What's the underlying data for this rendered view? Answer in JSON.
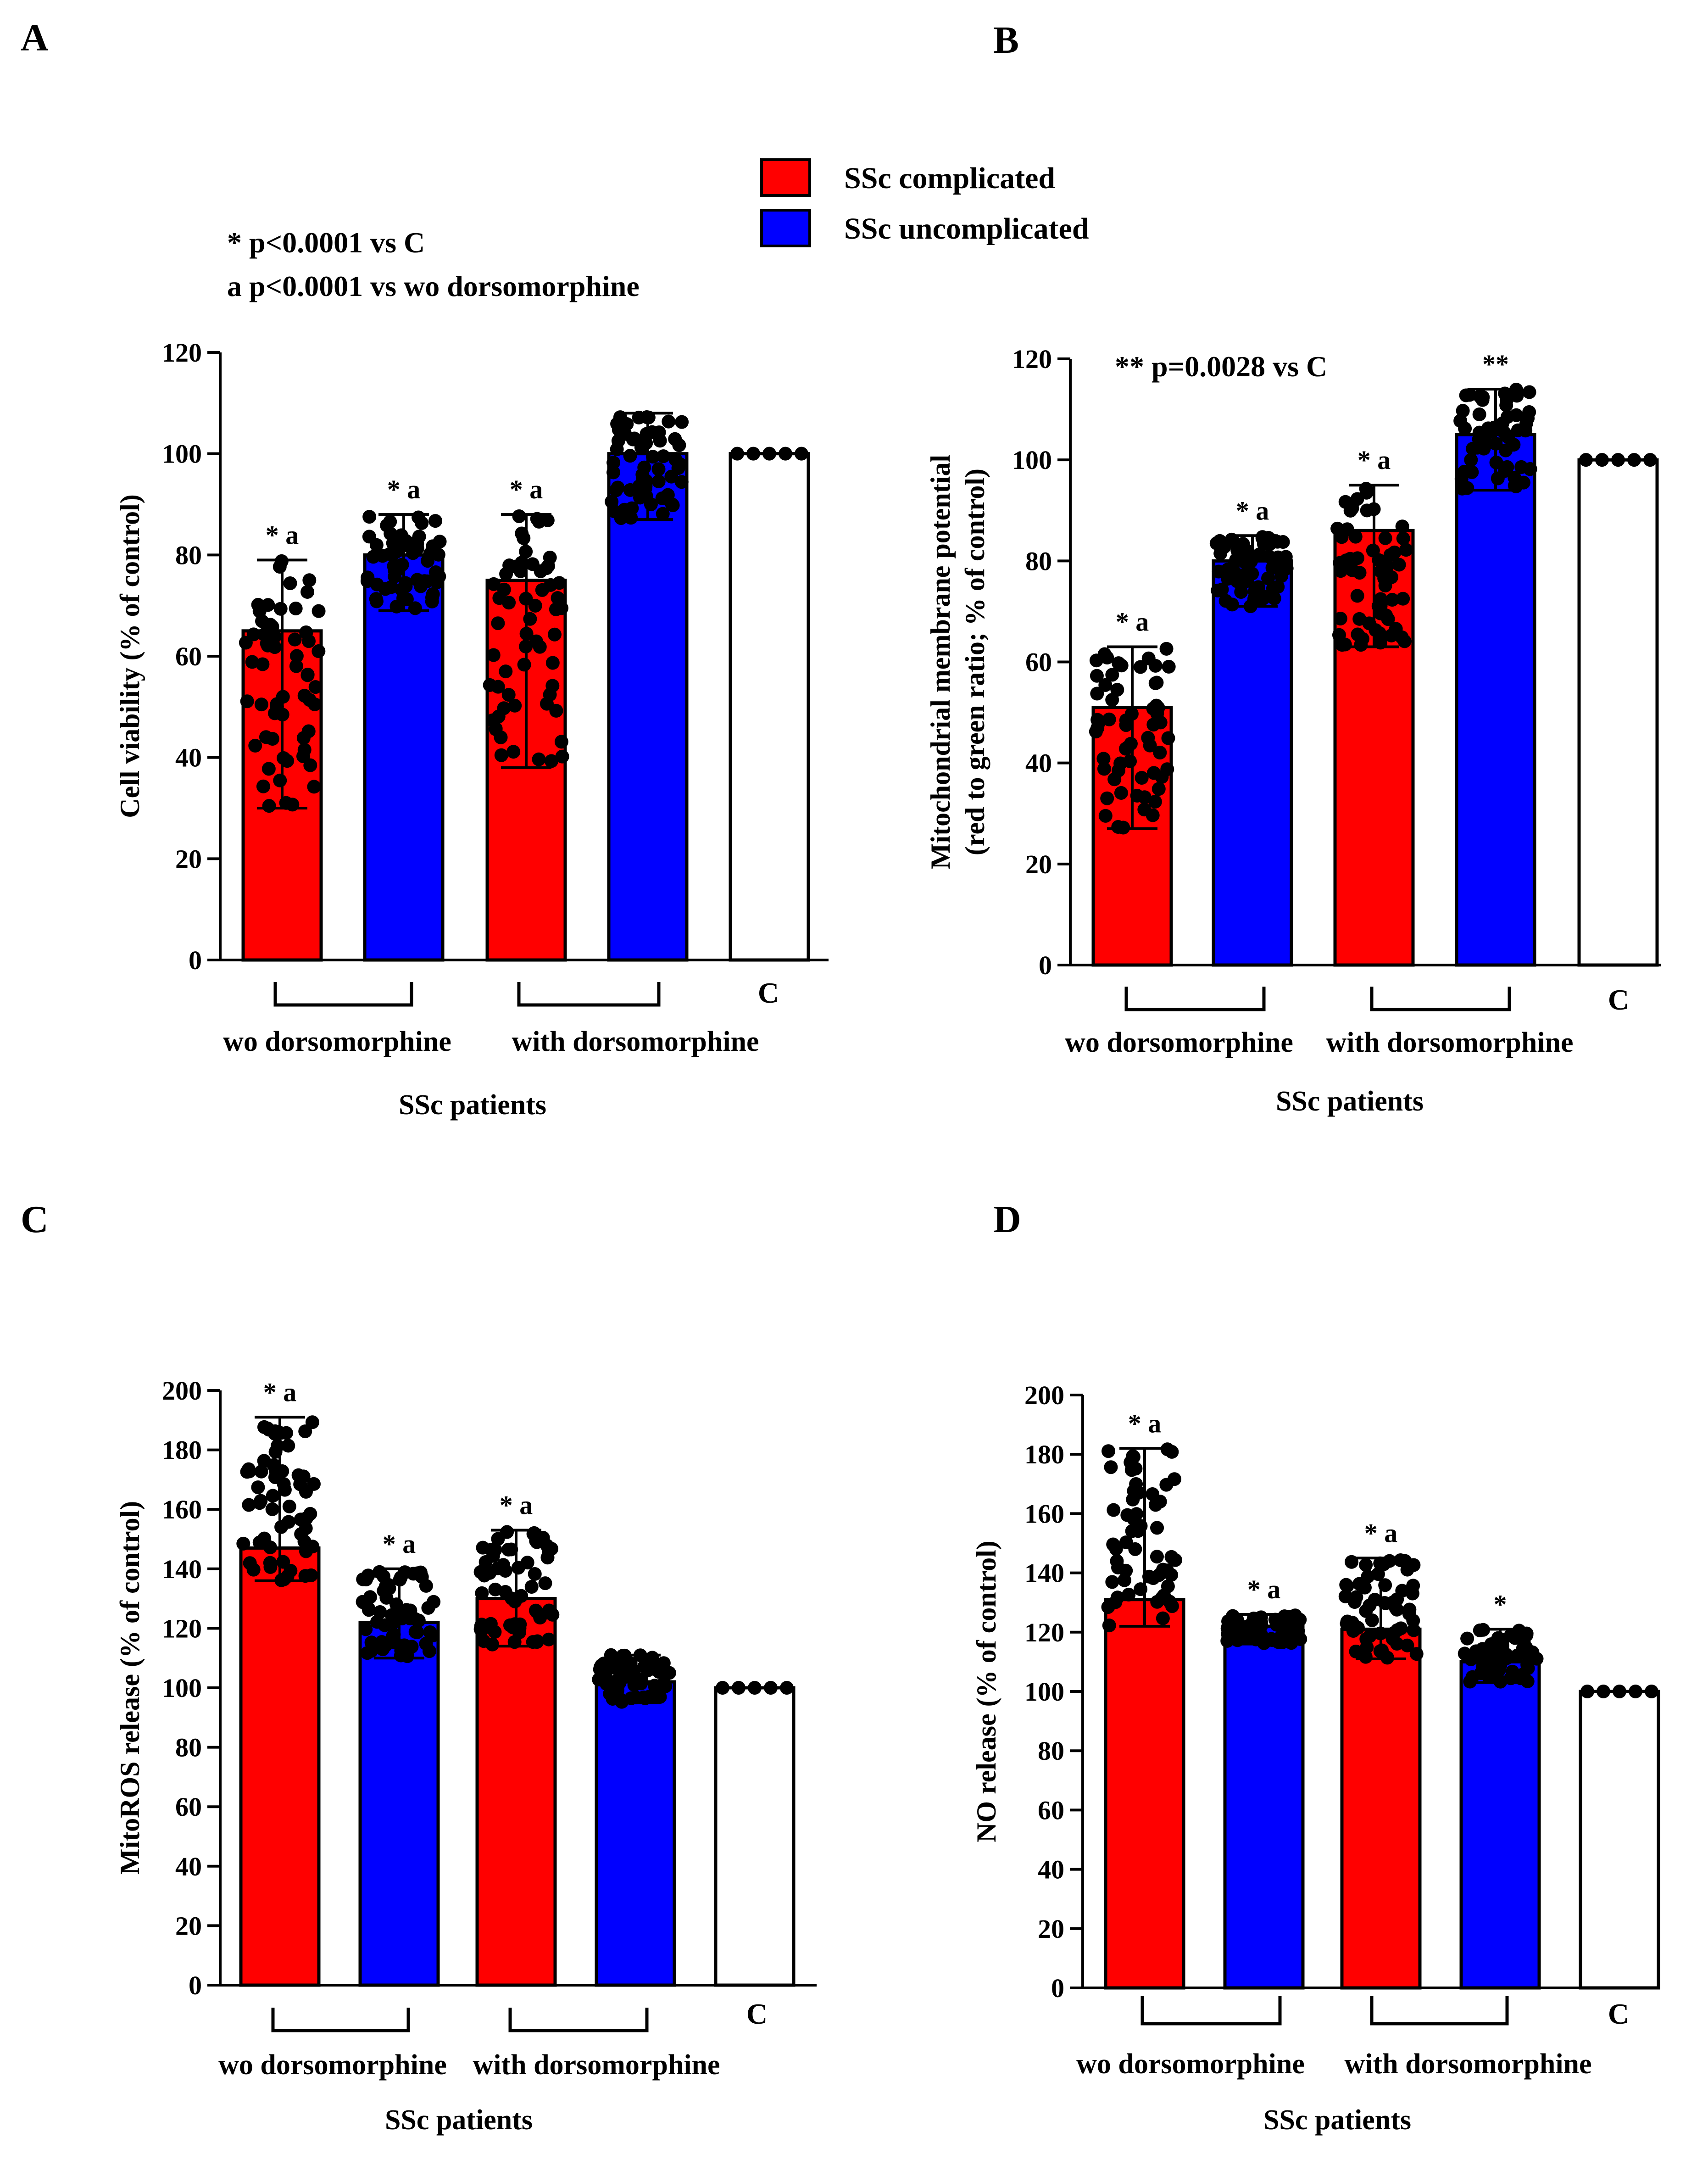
{
  "legend": {
    "items": [
      {
        "label": "SSc complicated",
        "color": "#ff0000"
      },
      {
        "label": "SSc uncomplicated",
        "color": "#0000ff"
      }
    ]
  },
  "colors": {
    "red": "#ff0000",
    "blue": "#0000ff",
    "white": "#ffffff",
    "black": "#000000"
  },
  "chart_data": [
    {
      "type": "bar",
      "panel_label": "A",
      "ylabel": "Cell viability (% of control)",
      "ylim": [
        0,
        120
      ],
      "yticks": [
        0,
        20,
        40,
        60,
        80,
        100,
        120
      ],
      "notes": [
        "* p<0.0001 vs C",
        "a  p<0.0001 vs wo dorsomorphine"
      ],
      "group_labels": [
        "wo dorsomorphine",
        "with dorsomorphine"
      ],
      "control_label": "C",
      "xlabel": "SSc patients",
      "bars": [
        {
          "value": 65,
          "err_low": 30,
          "err_high": 79,
          "color": "red",
          "annotation": "* a"
        },
        {
          "value": 80,
          "err_low": 69,
          "err_high": 88,
          "color": "blue",
          "annotation": "* a"
        },
        {
          "value": 75,
          "err_low": 38,
          "err_high": 88,
          "color": "red",
          "annotation": "* a"
        },
        {
          "value": 100,
          "err_low": 87,
          "err_high": 108,
          "color": "blue",
          "annotation": ""
        },
        {
          "value": 100,
          "err_low": 100,
          "err_high": 100,
          "color": "white",
          "annotation": ""
        }
      ]
    },
    {
      "type": "bar",
      "panel_label": "B",
      "ylabel": [
        "Mitochondrial membrane potential",
        "(red to green ratio; % of control)"
      ],
      "ylim": [
        0,
        120
      ],
      "yticks": [
        0,
        20,
        40,
        60,
        80,
        100,
        120
      ],
      "notes": [
        "** p=0.0028 vs C"
      ],
      "group_labels": [
        "wo dorsomorphine",
        "with dorsomorphine"
      ],
      "control_label": "C",
      "xlabel": "SSc patients",
      "bars": [
        {
          "value": 51,
          "err_low": 27,
          "err_high": 63,
          "color": "red",
          "annotation": "* a"
        },
        {
          "value": 80,
          "err_low": 71,
          "err_high": 85,
          "color": "blue",
          "annotation": "* a"
        },
        {
          "value": 86,
          "err_low": 63,
          "err_high": 95,
          "color": "red",
          "annotation": "* a"
        },
        {
          "value": 105,
          "err_low": 94,
          "err_high": 114,
          "color": "blue",
          "annotation": "**"
        },
        {
          "value": 100,
          "err_low": 100,
          "err_high": 100,
          "color": "white",
          "annotation": ""
        }
      ]
    },
    {
      "type": "bar",
      "panel_label": "C",
      "ylabel": "MitoROS release (% of control)",
      "ylim": [
        0,
        200
      ],
      "yticks": [
        0,
        20,
        40,
        60,
        80,
        100,
        120,
        140,
        160,
        180,
        200
      ],
      "notes": [],
      "group_labels": [
        "wo dorsomorphine",
        "with dorsomorphine"
      ],
      "control_label": "C",
      "xlabel": "SSc patients",
      "bars": [
        {
          "value": 147,
          "err_low": 136,
          "err_high": 191,
          "color": "red",
          "annotation": "* a"
        },
        {
          "value": 122,
          "err_low": 110,
          "err_high": 140,
          "color": "blue",
          "annotation": "* a"
        },
        {
          "value": 130,
          "err_low": 114,
          "err_high": 153,
          "color": "red",
          "annotation": "* a"
        },
        {
          "value": 102,
          "err_low": 95,
          "err_high": 111,
          "color": "blue",
          "annotation": ""
        },
        {
          "value": 100,
          "err_low": 100,
          "err_high": 100,
          "color": "white",
          "annotation": ""
        }
      ]
    },
    {
      "type": "bar",
      "panel_label": "D",
      "ylabel": "NO release (% of control)",
      "ylim": [
        0,
        200
      ],
      "yticks": [
        0,
        20,
        40,
        60,
        80,
        100,
        120,
        140,
        160,
        180,
        200
      ],
      "notes": [],
      "group_labels": [
        "wo dorsomorphine",
        "with dorsomorphine"
      ],
      "control_label": "C",
      "xlabel": "SSc patients",
      "bars": [
        {
          "value": 131,
          "err_low": 122,
          "err_high": 182,
          "color": "red",
          "annotation": "* a"
        },
        {
          "value": 122,
          "err_low": 116,
          "err_high": 126,
          "color": "blue",
          "annotation": "* a"
        },
        {
          "value": 121,
          "err_low": 111,
          "err_high": 145,
          "color": "red",
          "annotation": "* a"
        },
        {
          "value": 110,
          "err_low": 103,
          "err_high": 121,
          "color": "blue",
          "annotation": "*"
        },
        {
          "value": 100,
          "err_low": 100,
          "err_high": 100,
          "color": "white",
          "annotation": ""
        }
      ]
    }
  ]
}
